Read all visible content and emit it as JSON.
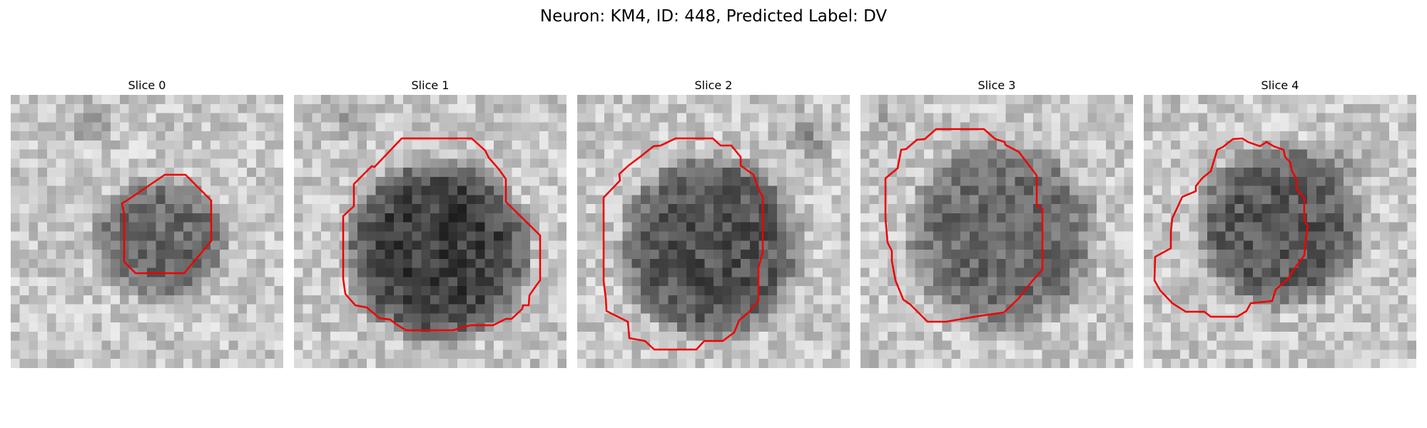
{
  "figure": {
    "title": "Neuron: KM4, ID: 448, Predicted Label: DV"
  },
  "slices": [
    {
      "title": "Slice 0"
    },
    {
      "title": "Slice 1"
    },
    {
      "title": "Slice 2"
    },
    {
      "title": "Slice 3"
    },
    {
      "title": "Slice 4"
    }
  ],
  "colors": {
    "contour": "#ee0000",
    "colormap": "gray"
  }
}
